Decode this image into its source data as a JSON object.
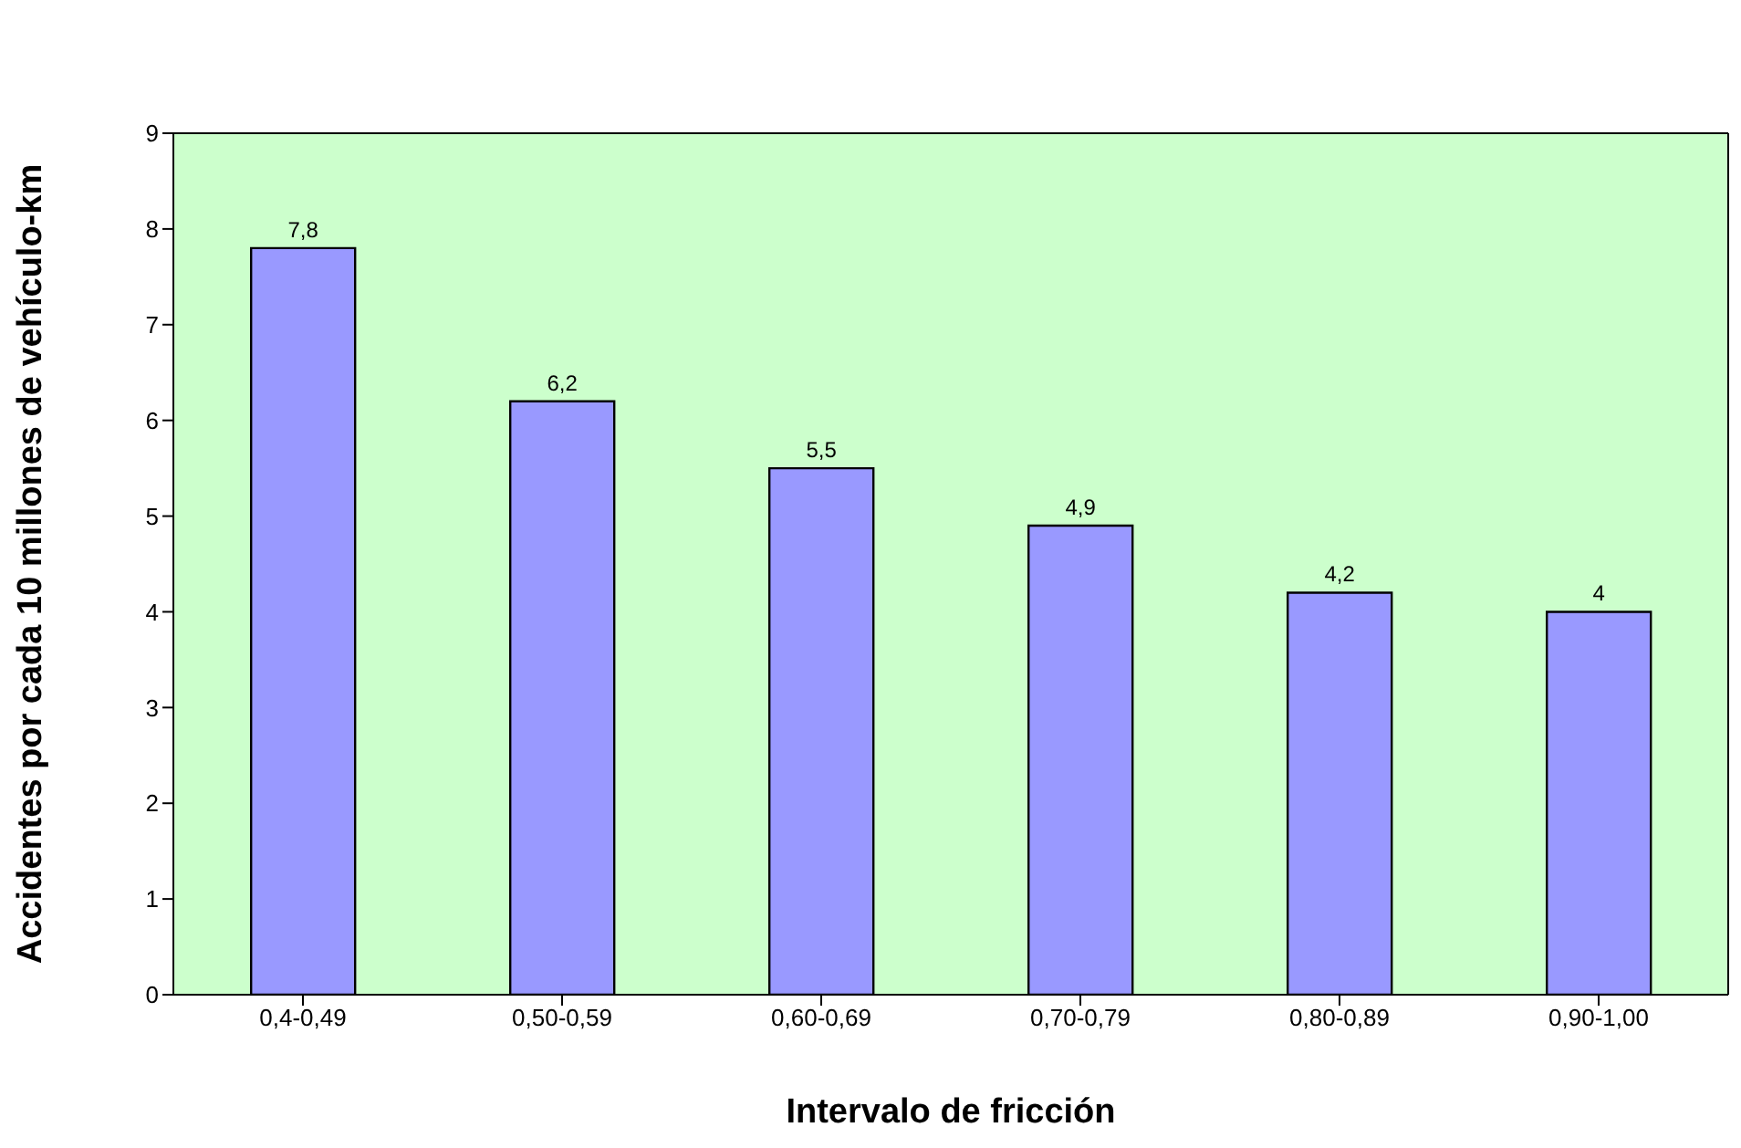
{
  "chart_data": {
    "type": "bar",
    "xlabel": "Intervalo de fricción",
    "ylabel": "Accidentes por cada 10 millones de vehículo-km",
    "categories": [
      "0,4-0,49",
      "0,50-0,59",
      "0,60-0,69",
      "0,70-0,79",
      "0,80-0,89",
      "0,90-1,00"
    ],
    "values": [
      7.8,
      6.2,
      5.5,
      4.9,
      4.2,
      4
    ],
    "value_labels": [
      "7,8",
      "6,2",
      "5,5",
      "4,9",
      "4,2",
      "4"
    ],
    "color": "#9999ff",
    "ylim": [
      0,
      9
    ],
    "yticks": [
      0,
      1,
      2,
      3,
      4,
      5,
      6,
      7,
      8,
      9
    ],
    "grid": false
  }
}
